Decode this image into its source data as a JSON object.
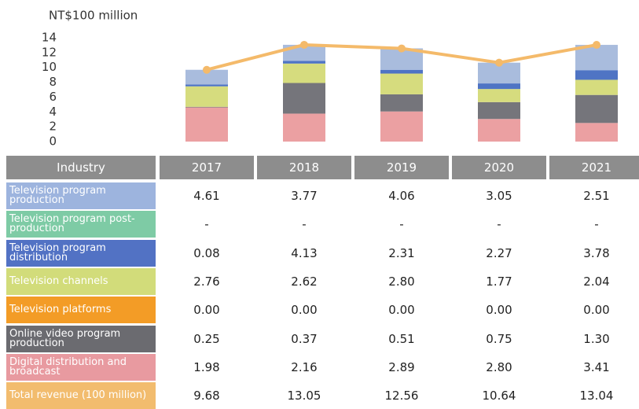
{
  "chart_data": {
    "type": "bar",
    "y_axis_label": "NT$100 million",
    "ylim": [
      0,
      14
    ],
    "yticks": [
      0,
      2,
      4,
      6,
      8,
      10,
      12,
      14
    ],
    "grid": false,
    "table_header": "Industry",
    "categories": [
      "2017",
      "2018",
      "2019",
      "2020",
      "2021"
    ],
    "series": [
      {
        "name": "Television program production",
        "color": "#9db4de",
        "bar_color": "#eba0a2",
        "values": [
          4.61,
          3.77,
          4.06,
          3.05,
          2.51
        ],
        "value_labels": [
          "4.61",
          "3.77",
          "4.06",
          "3.05",
          "2.51"
        ]
      },
      {
        "name": "Television program post-production",
        "color": "#7ecba5",
        "values": [
          null,
          null,
          null,
          null,
          null
        ],
        "value_labels": [
          "-",
          "-",
          "-",
          "-",
          "-"
        ]
      },
      {
        "name": "Television program distribution",
        "color": "#5272c4",
        "bar_color": "#75757b",
        "values": [
          0.08,
          4.13,
          2.31,
          2.27,
          3.78
        ],
        "value_labels": [
          "0.08",
          "4.13",
          "2.31",
          "2.27",
          "3.78"
        ]
      },
      {
        "name": "Television channels",
        "color": "#d2dc7a",
        "bar_color": "#d6dc7e",
        "values": [
          2.76,
          2.62,
          2.8,
          1.77,
          2.04
        ],
        "value_labels": [
          "2.76",
          "2.62",
          "2.80",
          "1.77",
          "2.04"
        ]
      },
      {
        "name": "Television platforms",
        "color": "#f39c26",
        "bar_color": "#f39c26",
        "values": [
          0,
          0,
          0,
          0,
          0
        ],
        "value_labels": [
          "0.00",
          "0.00",
          "0.00",
          "0.00",
          "0.00"
        ]
      },
      {
        "name": "Online video program production",
        "color": "#6b6b70",
        "bar_color": "#4f74c4",
        "values": [
          0.25,
          0.37,
          0.51,
          0.75,
          1.3
        ],
        "value_labels": [
          "0.25",
          "0.37",
          "0.51",
          "0.75",
          "1.30"
        ]
      },
      {
        "name": "Digital distribution and broadcast",
        "color": "#e89aa0",
        "bar_color": "#a9bcdd",
        "values": [
          1.98,
          2.16,
          2.89,
          2.8,
          3.41
        ],
        "value_labels": [
          "1.98",
          "2.16",
          "2.89",
          "2.80",
          "3.41"
        ]
      },
      {
        "name": "Total revenue (100 million)",
        "color": "#f2bc6e",
        "line_color": "#f4ba6a",
        "values": [
          9.68,
          13.05,
          12.56,
          10.64,
          13.04
        ],
        "value_labels": [
          "9.68",
          "13.05",
          "12.56",
          "10.64",
          "13.04"
        ]
      }
    ]
  }
}
